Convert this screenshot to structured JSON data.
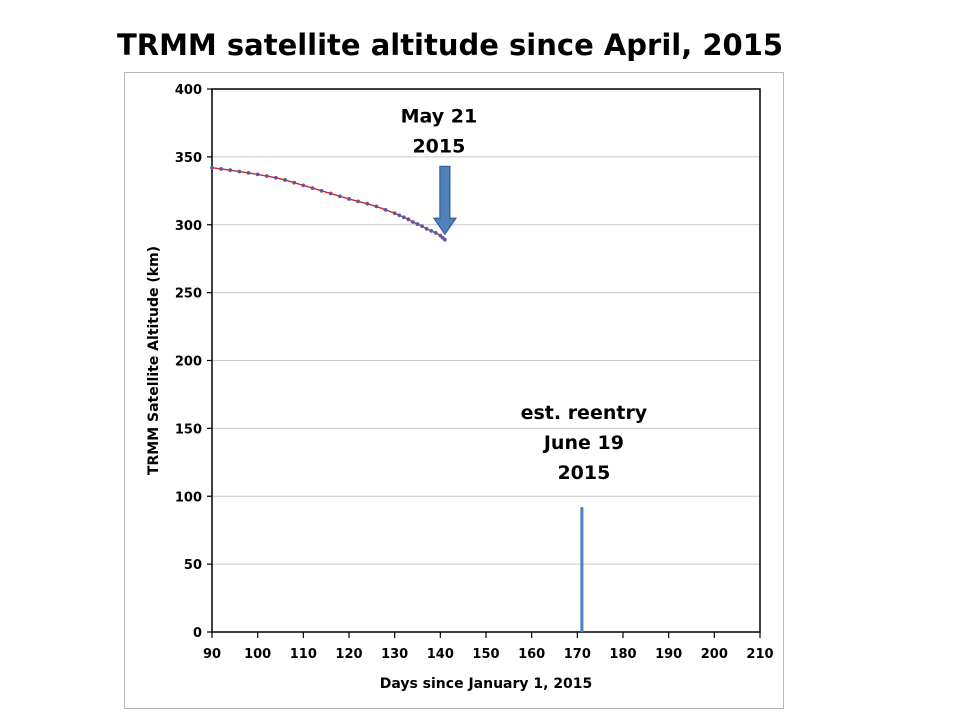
{
  "chart_data": {
    "type": "scatter",
    "title": "TRMM satellite altitude since April, 2015",
    "xlabel": "Days since January 1, 2015",
    "ylabel": "TRMM Satellite Altitude (km)",
    "xlim": [
      90,
      210
    ],
    "ylim": [
      0,
      400
    ],
    "xticks": [
      90,
      100,
      110,
      120,
      130,
      140,
      150,
      160,
      170,
      180,
      190,
      200,
      210
    ],
    "yticks": [
      0,
      50,
      100,
      150,
      200,
      250,
      300,
      350,
      400
    ],
    "grid": "horizontal",
    "series": [
      {
        "marker_color": "#5a5aa8",
        "line_color": "#e02020",
        "points": [
          [
            90,
            342.0
          ],
          [
            92,
            341.1
          ],
          [
            94,
            340.2
          ],
          [
            96,
            339.2
          ],
          [
            98,
            338.2
          ],
          [
            100,
            337.1
          ],
          [
            102,
            335.9
          ],
          [
            104,
            334.6
          ],
          [
            106,
            333.0
          ],
          [
            108,
            331.0
          ],
          [
            110,
            329.0
          ],
          [
            112,
            327.0
          ],
          [
            114,
            325.0
          ],
          [
            116,
            323.0
          ],
          [
            118,
            321.0
          ],
          [
            120,
            319.0
          ],
          [
            122,
            317.2
          ],
          [
            124,
            315.5
          ],
          [
            126,
            313.5
          ],
          [
            128,
            311.0
          ],
          [
            130,
            308.5
          ],
          [
            131,
            307.0
          ],
          [
            132,
            305.5
          ],
          [
            133,
            304.0
          ],
          [
            134,
            302.0
          ],
          [
            135,
            300.5
          ],
          [
            136,
            299.0
          ],
          [
            137,
            297.0
          ],
          [
            138,
            295.5
          ],
          [
            139,
            294.0
          ],
          [
            140,
            292.0
          ],
          [
            140.5,
            290.5
          ],
          [
            141,
            289.0
          ]
        ]
      }
    ],
    "annotations": [
      {
        "lines": [
          "May 21",
          "2015"
        ],
        "x": 141,
        "marker": "down-arrow",
        "arrow_from_y": 343,
        "arrow_to_y": 293
      },
      {
        "lines": [
          "est. reentry",
          "June 19",
          "2015"
        ],
        "x": 171,
        "marker": "vertical-line",
        "line_from_y": 0,
        "line_to_y": 92
      }
    ],
    "colors": {
      "arrow": "#4f81bd",
      "arrow_border": "#385d8a",
      "grid": "#c8c8c8"
    }
  }
}
